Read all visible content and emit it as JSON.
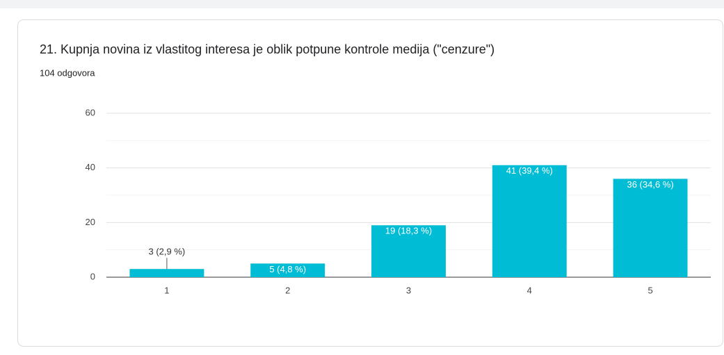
{
  "chart_data": {
    "type": "bar",
    "title": "21. Kupnja novina iz vlastitog interesa je oblik potpune kontrole medija (\"cenzure\")",
    "subtitle": "104 odgovora",
    "categories": [
      "1",
      "2",
      "3",
      "4",
      "5"
    ],
    "values": [
      3,
      5,
      19,
      41,
      36
    ],
    "value_labels": [
      "3 (2,9 %)",
      "5 (4,8 %)",
      "19 (18,3 %)",
      "41 (39,4 %)",
      "36 (34,6 %)"
    ],
    "color": "#00bcd4",
    "ylim": [
      0,
      60
    ],
    "yticks": [
      0,
      20,
      40,
      60
    ],
    "minor_yticks": [
      10,
      30,
      50
    ],
    "grid": true
  }
}
